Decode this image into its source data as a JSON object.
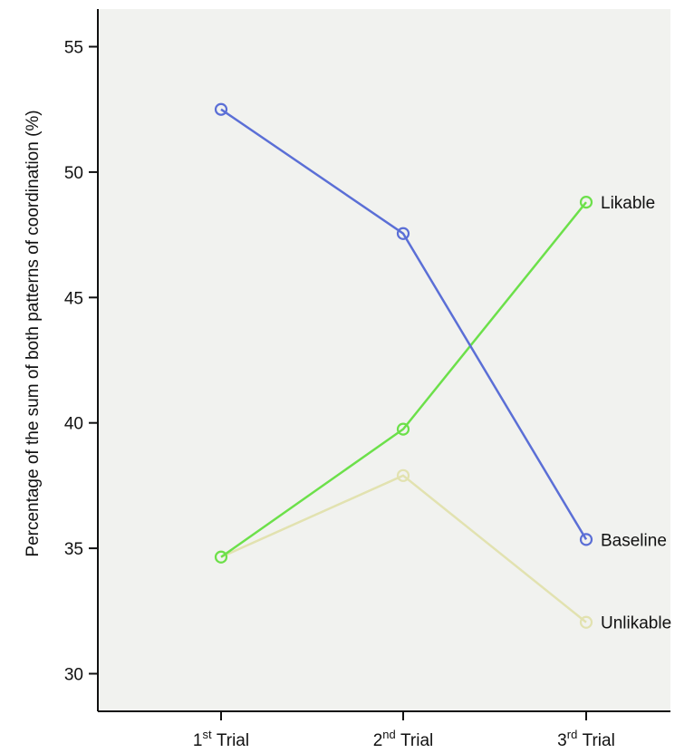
{
  "chart_data": {
    "type": "line",
    "title": "",
    "xlabel": "",
    "ylabel": "Percentage of the sum of both patterns of coordination (%)",
    "categories": [
      {
        "base": "1",
        "sup": "st",
        "rest": " Trial"
      },
      {
        "base": "2",
        "sup": "nd",
        "rest": " Trial"
      },
      {
        "base": "3",
        "sup": "rd",
        "rest": " Trial"
      }
    ],
    "ylim": [
      28.5,
      56.5
    ],
    "yticks": [
      30,
      35,
      40,
      45,
      50,
      55
    ],
    "grid": false,
    "legend": "direct labels at line ends",
    "series": [
      {
        "name": "Baseline",
        "color": "#5b6fd6",
        "values": [
          52.5,
          47.55,
          35.35
        ]
      },
      {
        "name": "Likable",
        "color": "#6ce04a",
        "values": [
          34.65,
          39.75,
          48.8
        ]
      },
      {
        "name": "Unlikable",
        "color": "#e2e2b0",
        "values": [
          34.65,
          37.9,
          32.05
        ]
      }
    ]
  },
  "colors": {
    "plot_background": "#f1f2ef",
    "axis": "#111111"
  }
}
